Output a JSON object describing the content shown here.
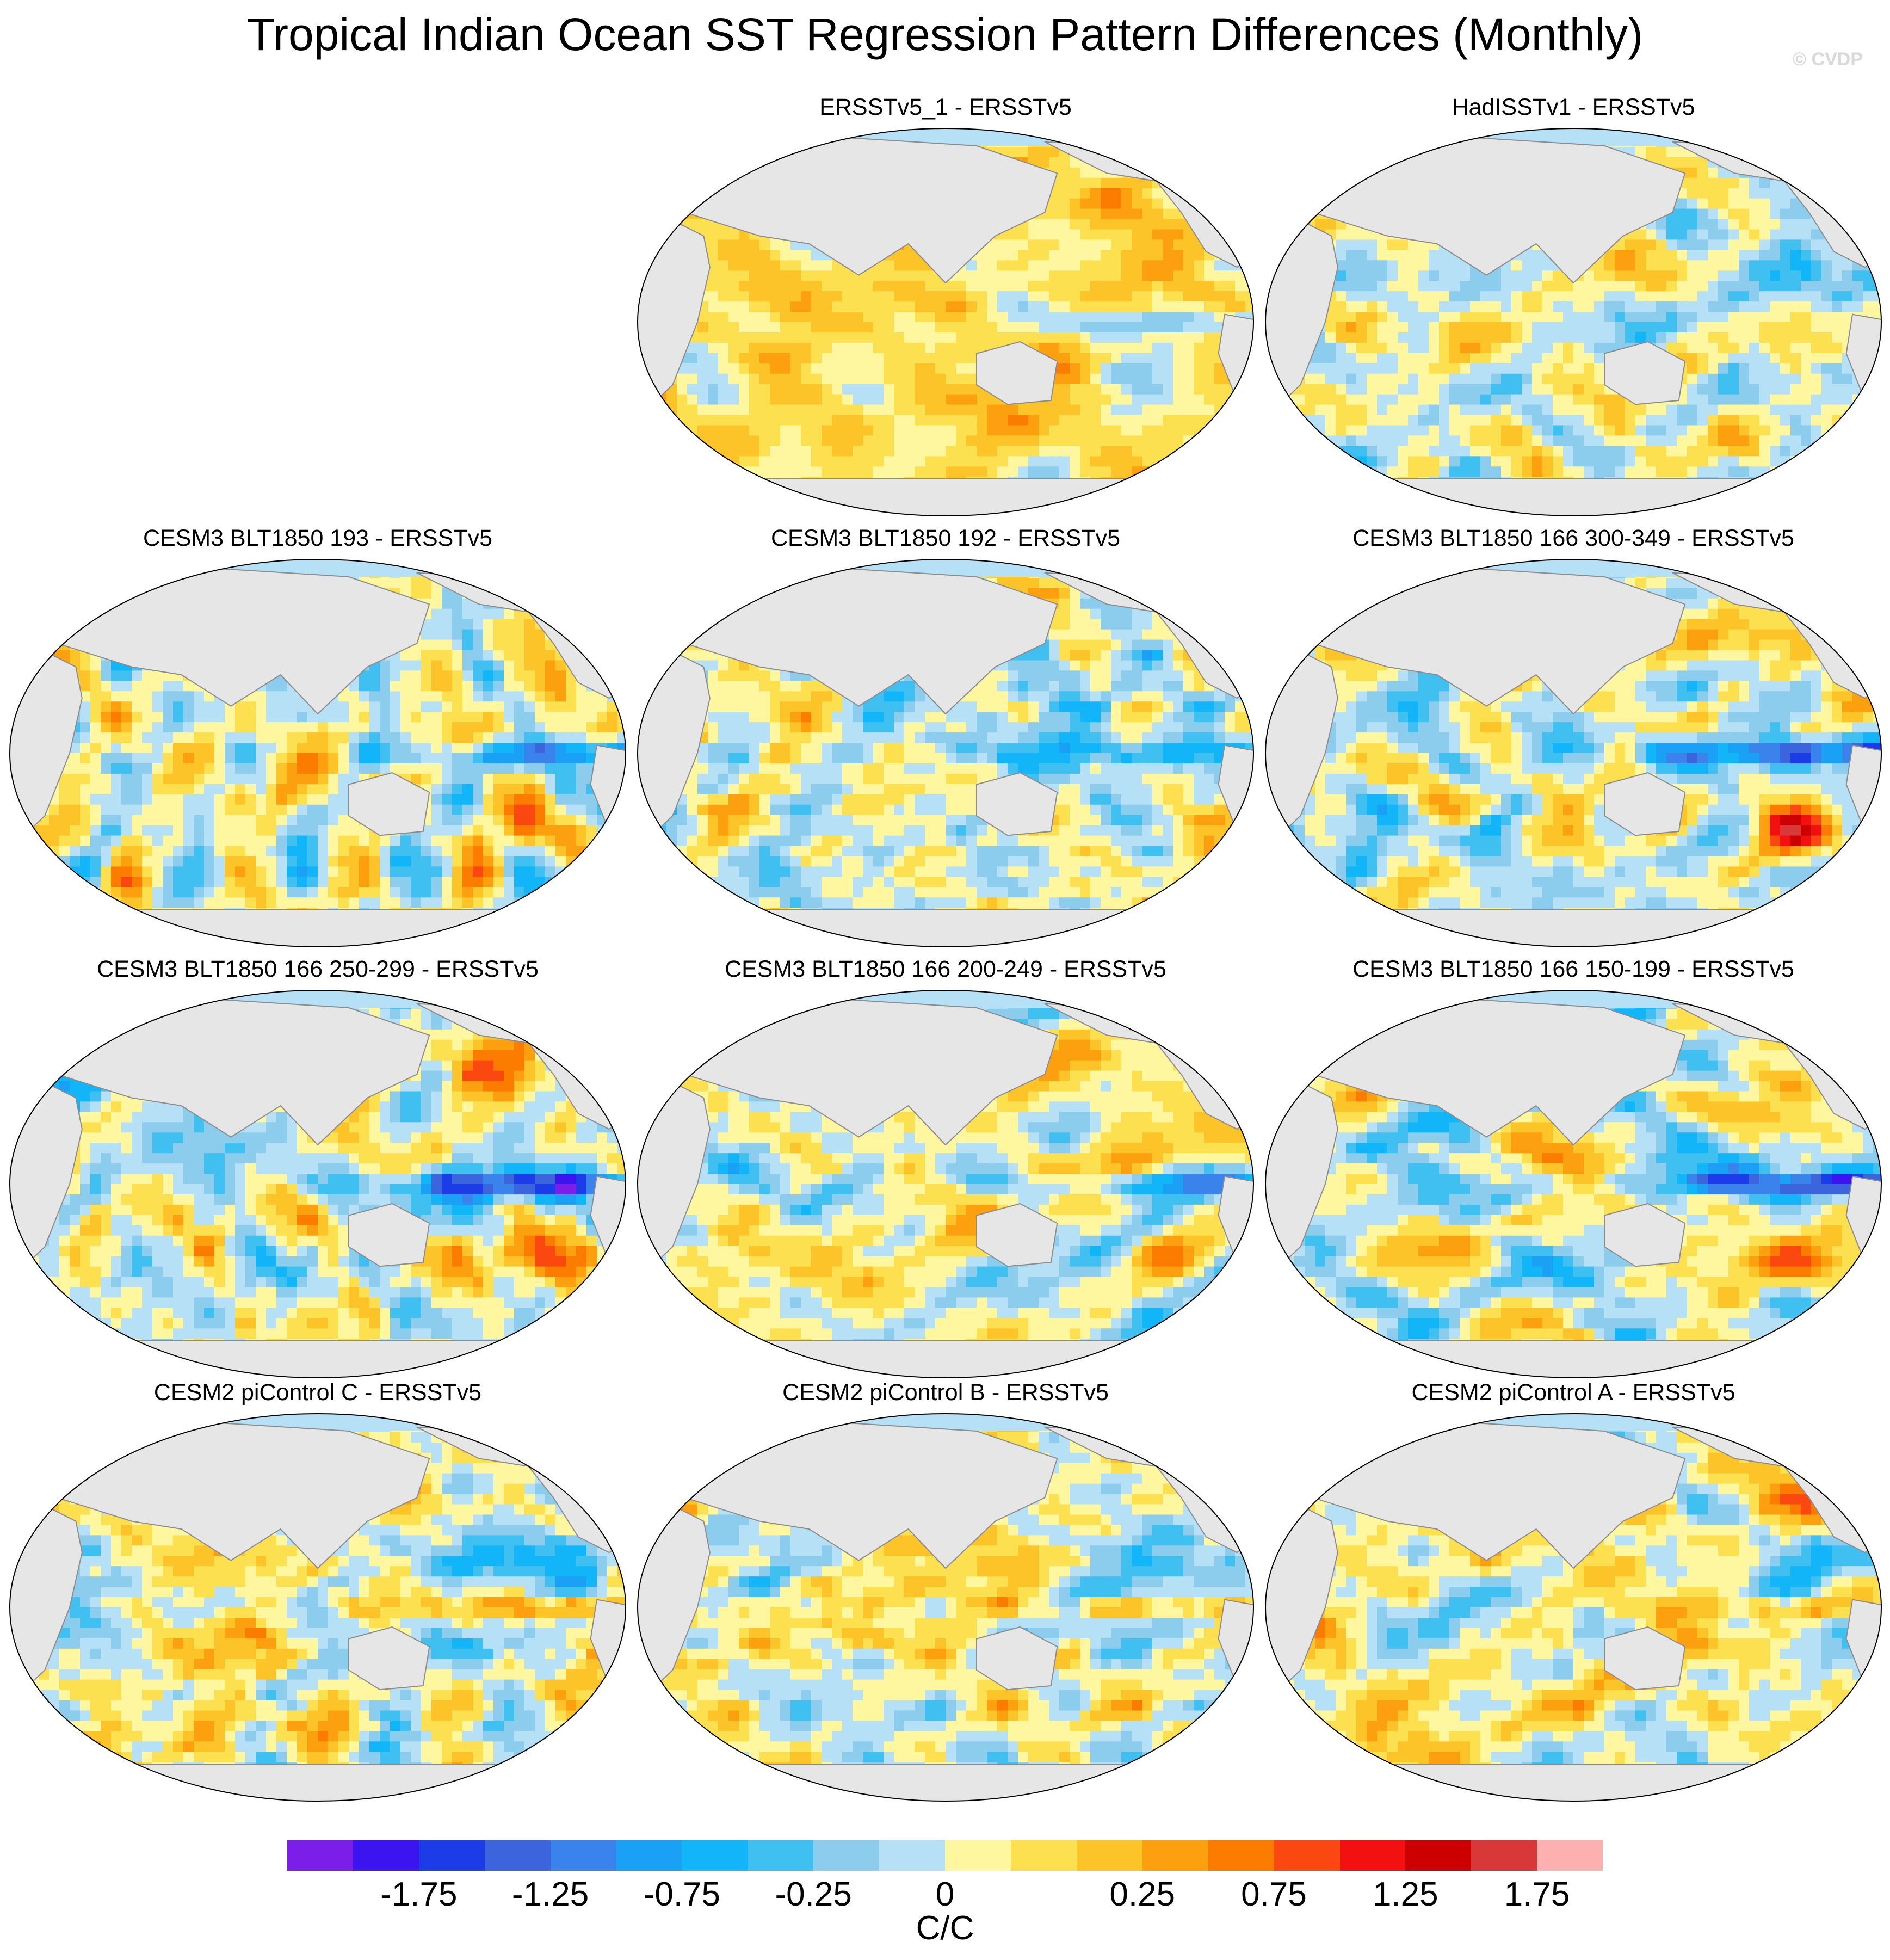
{
  "title": "Tropical Indian Ocean SST Regression Pattern Differences (Monthly)",
  "watermark": "© CVDP",
  "panels": [
    {
      "title": "ERSSTv5_1 - ERSSTv5",
      "pattern": "warm_dominant",
      "seed": 11
    },
    {
      "title": "HadISSTv1 - ERSSTv5",
      "pattern": "mixed_fine",
      "seed": 23
    },
    {
      "title": "CESM3 BLT1850 193 - ERSSTv5",
      "pattern": "cold_tongue",
      "seed": 37
    },
    {
      "title": "CESM3 BLT1850 192 - ERSSTv5",
      "pattern": "cold_tongue_mild",
      "seed": 41
    },
    {
      "title": "CESM3 BLT1850 166 300-349 - ERSSTv5",
      "pattern": "cold_tongue_strong",
      "seed": 53
    },
    {
      "title": "CESM3 BLT1850 166 250-299 - ERSSTv5",
      "pattern": "cold_tongue_strong",
      "seed": 61
    },
    {
      "title": "CESM3 BLT1850 166 200-249 - ERSSTv5",
      "pattern": "cold_tongue",
      "seed": 71
    },
    {
      "title": "CESM3 BLT1850 166 150-199 - ERSSTv5",
      "pattern": "cold_tongue_strong",
      "seed": 83
    },
    {
      "title": "CESM2 piControl C - ERSSTv5",
      "pattern": "pacific_cool",
      "seed": 97
    },
    {
      "title": "CESM2 piControl B - ERSSTv5",
      "pattern": "pacific_cool",
      "seed": 101
    },
    {
      "title": "CESM2 piControl A - ERSSTv5",
      "pattern": "pacific_cool_mild",
      "seed": 113
    }
  ],
  "colorbar": {
    "colors": [
      "#7a1ee8",
      "#3c14f0",
      "#1c3ce8",
      "#3c64dc",
      "#3a82ec",
      "#1aa0f4",
      "#12b6f8",
      "#40c0f0",
      "#8cccec",
      "#b6e0f6",
      "#fff7a0",
      "#fce050",
      "#fcc428",
      "#fca010",
      "#fc7c00",
      "#fa4810",
      "#f21010",
      "#cc0000",
      "#d83838",
      "#fcb0b0"
    ],
    "ticks": [
      "-1.75",
      "-1.25",
      "-0.75",
      "-0.25",
      "0",
      "0.25",
      "0.75",
      "1.25",
      "1.75"
    ],
    "units": "C/C"
  },
  "colors": {
    "land": "#e6e6e6",
    "coast": "#8c8c8c",
    "background": "#ffffff"
  }
}
